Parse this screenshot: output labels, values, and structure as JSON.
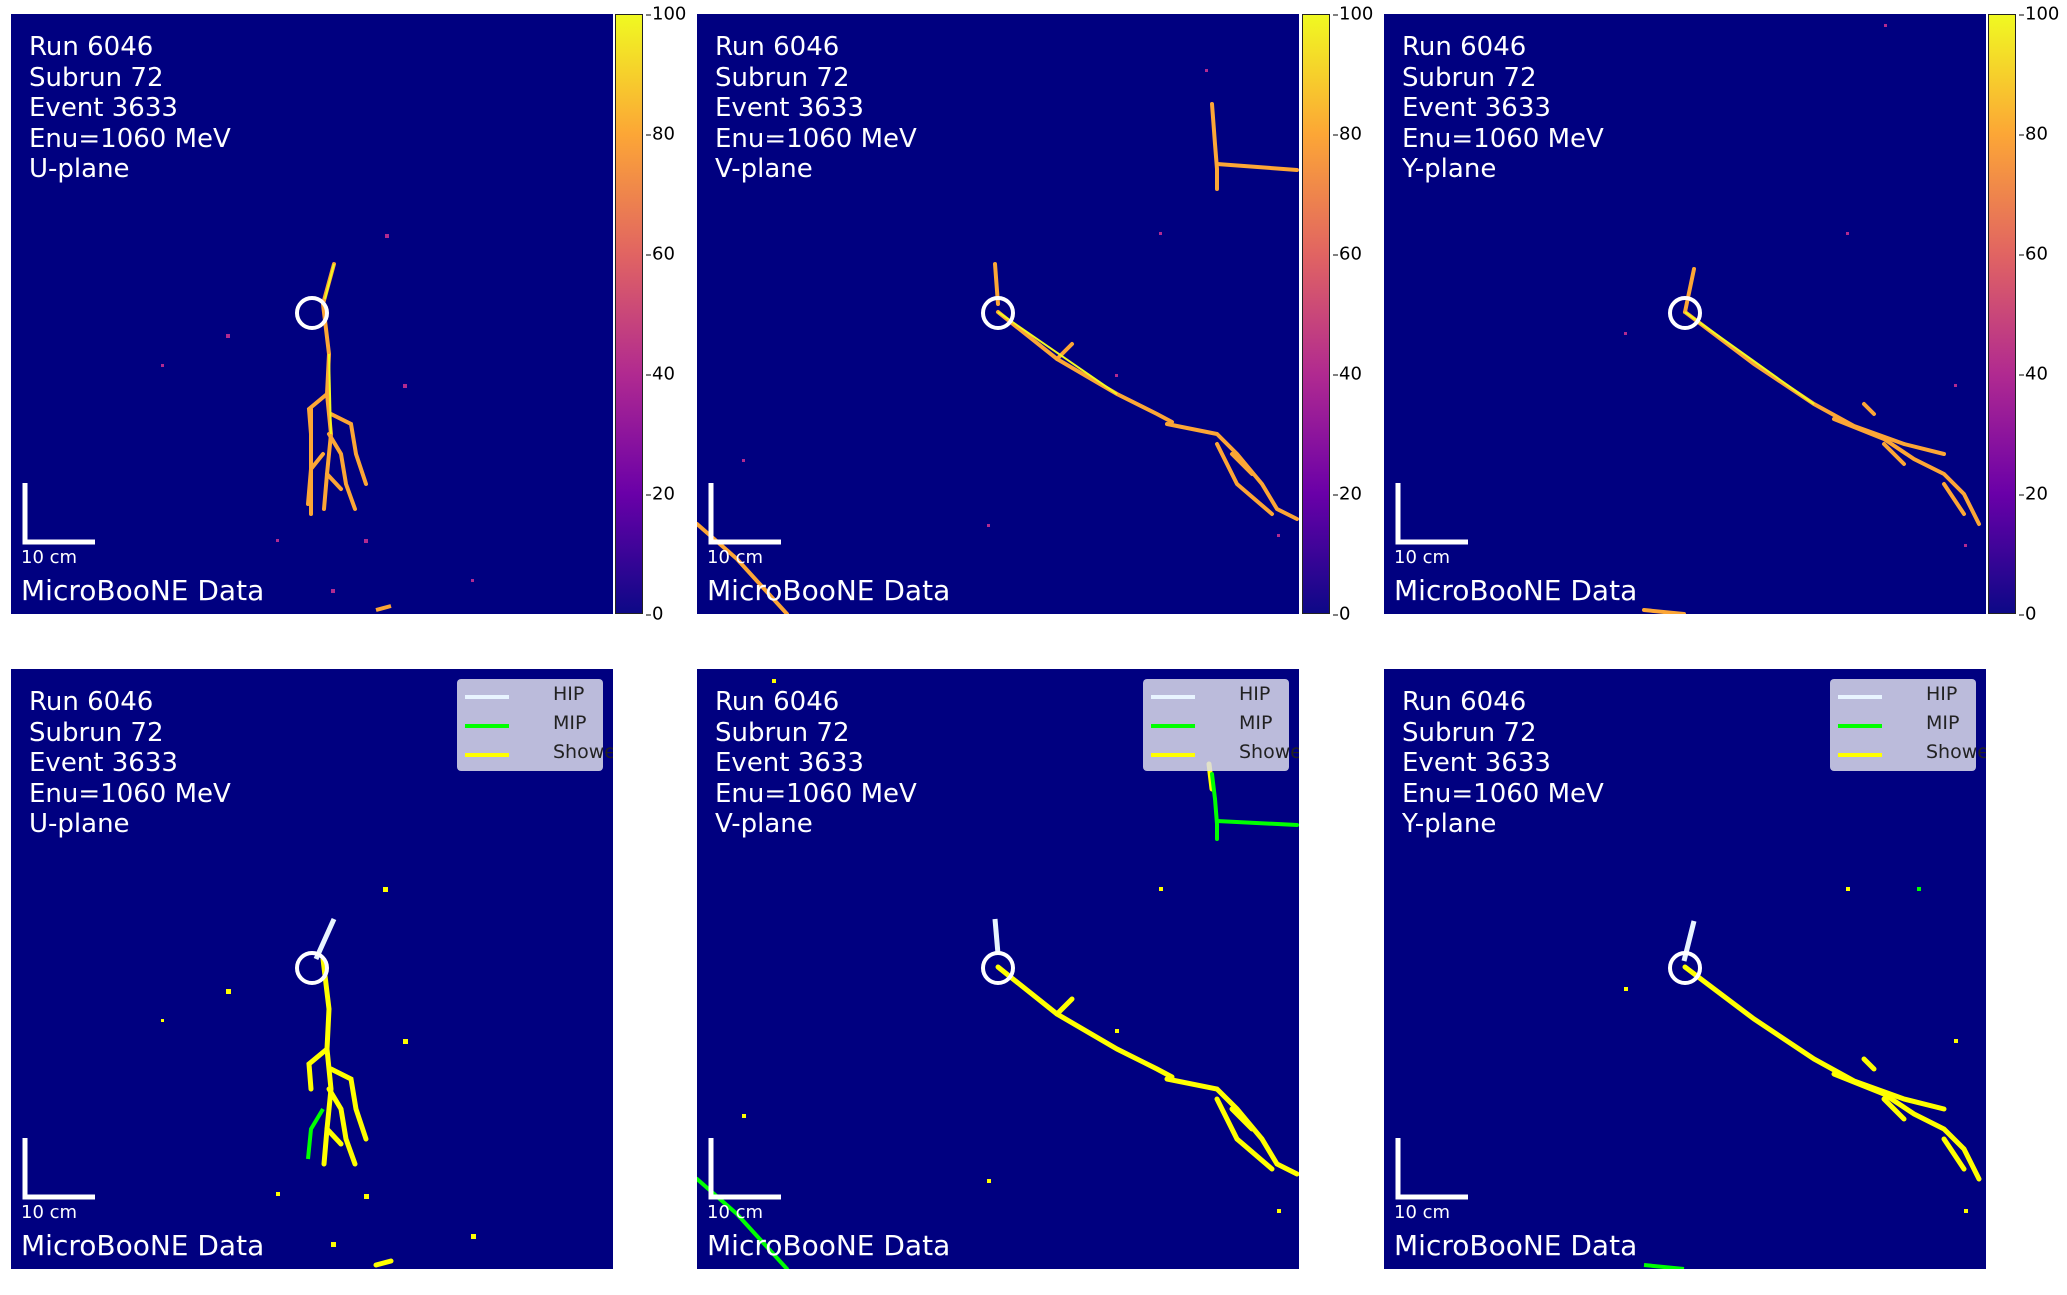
{
  "event": {
    "run": "Run 6046",
    "subrun": "Subrun 72",
    "event": "Event 3633",
    "energy": "Enu=1060 MeV"
  },
  "planes": [
    "U-plane",
    "V-plane",
    "Y-plane"
  ],
  "scale_label": "10 cm",
  "data_label": "MicroBooNE Data",
  "colorbar": {
    "range": [
      0,
      100
    ],
    "ticks": [
      "100",
      "80",
      "60",
      "40",
      "20",
      "0"
    ],
    "colormap": "plasma"
  },
  "legend": [
    {
      "label": "HIP",
      "color": "#e8f4ff"
    },
    {
      "label": "MIP",
      "color": "#00ff00"
    },
    {
      "label": "Shower",
      "color": "#ffff00"
    }
  ],
  "colors": {
    "background": "#000080",
    "charge_track": "#fca636",
    "charge_core": "#f0f921",
    "vertex_marker": "#ffffff"
  }
}
